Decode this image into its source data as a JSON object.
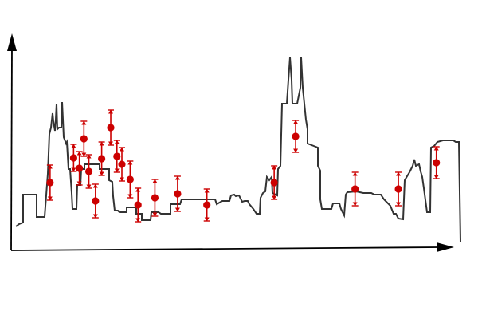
{
  "chart_data": {
    "type": "scatter",
    "title": "",
    "xlabel": "",
    "ylabel": "",
    "grid": false,
    "legend": "none",
    "xlim": [
      0,
      100
    ],
    "ylim": [
      0,
      100
    ],
    "colors": {
      "marker": "#cc0000",
      "skyline": "#333333",
      "axis": "#000000"
    },
    "series": [
      {
        "points": [
          {
            "x": 4.8,
            "y": 30.5,
            "err": 11.0
          },
          {
            "x": 10.5,
            "y": 46.0,
            "err": 8.5
          },
          {
            "x": 11.9,
            "y": 39.5,
            "err": 10.5
          },
          {
            "x": 13.0,
            "y": 58.0,
            "err": 11.0
          },
          {
            "x": 14.2,
            "y": 37.5,
            "err": 10.5
          },
          {
            "x": 15.8,
            "y": 19.0,
            "err": 10.5
          },
          {
            "x": 17.3,
            "y": 45.5,
            "err": 10.5
          },
          {
            "x": 19.5,
            "y": 65.0,
            "err": 11.0
          },
          {
            "x": 21.0,
            "y": 47.0,
            "err": 10.0
          },
          {
            "x": 22.2,
            "y": 42.0,
            "err": 10.5
          },
          {
            "x": 24.2,
            "y": 32.5,
            "err": 11.5
          },
          {
            "x": 26.1,
            "y": 16.5,
            "err": 10.5
          },
          {
            "x": 30.2,
            "y": 21.0,
            "err": 11.5
          },
          {
            "x": 35.7,
            "y": 23.5,
            "err": 11.0
          },
          {
            "x": 42.8,
            "y": 16.5,
            "err": 10.0
          },
          {
            "x": 59.1,
            "y": 30.5,
            "err": 10.5
          },
          {
            "x": 64.3,
            "y": 59.5,
            "err": 10.0
          },
          {
            "x": 78.7,
            "y": 26.5,
            "err": 10.5
          },
          {
            "x": 89.2,
            "y": 26.5,
            "err": 10.5
          },
          {
            "x": 98.4,
            "y": 43.0,
            "err": 10.0
          }
        ]
      }
    ]
  }
}
